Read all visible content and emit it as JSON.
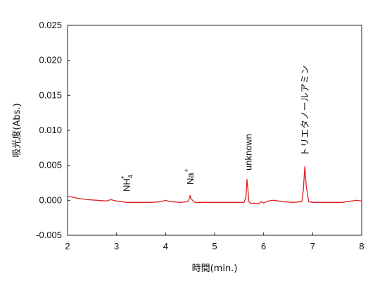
{
  "chart_data": {
    "type": "line",
    "xlabel": "時間(min.)",
    "ylabel": "吸光度(Abs.)",
    "xlim": [
      2,
      8
    ],
    "ylim": [
      -0.005,
      0.025
    ],
    "x_ticks": [
      2,
      3,
      4,
      5,
      6,
      7,
      8
    ],
    "x_tick_labels": [
      "2",
      "3",
      "4",
      "5",
      "6",
      "7",
      "8"
    ],
    "y_ticks": [
      -0.005,
      0,
      0.005,
      0.01,
      0.015,
      0.02,
      0.025
    ],
    "y_tick_labels": [
      "-0.005",
      "0.000",
      "0.005",
      "0.010",
      "0.015",
      "0.020",
      "0.025"
    ],
    "grid": false,
    "series": [
      {
        "color": "#e02020",
        "x": [
          2.0,
          2.2,
          2.4,
          2.6,
          2.8,
          2.88,
          3.0,
          3.2,
          3.35,
          3.5,
          3.7,
          3.9,
          4.0,
          4.1,
          4.3,
          4.45,
          4.49,
          4.5,
          4.52,
          4.6,
          4.8,
          5.0,
          5.2,
          5.4,
          5.6,
          5.64,
          5.66,
          5.68,
          5.7,
          5.74,
          5.8,
          5.9,
          5.95,
          6.0,
          6.1,
          6.2,
          6.3,
          6.4,
          6.6,
          6.78,
          6.81,
          6.84,
          6.87,
          6.92,
          7.0,
          7.2,
          7.4,
          7.6,
          7.8,
          7.9,
          8.0
        ],
        "y": [
          0.0006,
          0.0003,
          0.0001,
          0.0,
          -0.0001,
          0.0001,
          -0.0001,
          -0.0003,
          -0.0003,
          -0.0003,
          -0.0003,
          -0.0002,
          0.0,
          -0.0002,
          -0.0003,
          -0.0002,
          0.0003,
          0.0007,
          0.0002,
          -0.0003,
          -0.0003,
          -0.0003,
          -0.0003,
          -0.0003,
          -0.0003,
          0.0005,
          0.003,
          0.0015,
          -0.0002,
          -0.0005,
          -0.0004,
          -0.0005,
          -0.0002,
          -0.0004,
          -0.0001,
          0.0,
          -0.0001,
          -0.0002,
          -0.0003,
          -0.0002,
          0.0015,
          0.0048,
          0.002,
          -0.0002,
          -0.0003,
          -0.0003,
          -0.0003,
          -0.0003,
          -0.0001,
          0.0,
          -0.0001
        ]
      }
    ],
    "annotations": [
      {
        "id": "nh4",
        "text": "NH",
        "sub": "4",
        "sup": "+",
        "x": 3.2
      },
      {
        "id": "na",
        "text": "Na",
        "sup": "+",
        "x": 4.5
      },
      {
        "id": "unknown",
        "text": "unknown",
        "x": 5.68
      },
      {
        "id": "tea",
        "text": "トリエタノールアミン",
        "x": 6.84
      }
    ]
  }
}
